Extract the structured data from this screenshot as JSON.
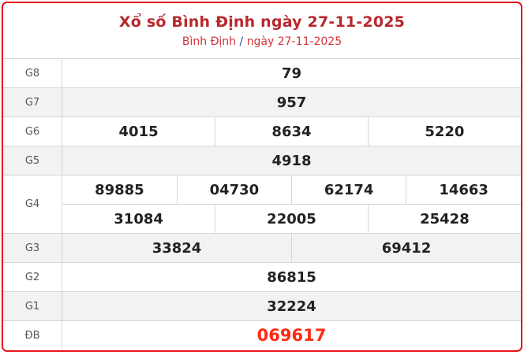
{
  "header": {
    "title": "Xổ số Bình Định ngày 27-11-2025",
    "crumb_province": "Bình Định",
    "crumb_sep": "/",
    "crumb_date": "ngày 27-11-2025"
  },
  "colors": {
    "border": "#e8141c",
    "title": "#b8282d",
    "special": "#ff2a12",
    "alt_row": "#f2f2f2"
  },
  "prizes": {
    "g8": {
      "label": "G8",
      "numbers": [
        "79"
      ]
    },
    "g7": {
      "label": "G7",
      "numbers": [
        "957"
      ]
    },
    "g6": {
      "label": "G6",
      "numbers": [
        "4015",
        "8634",
        "5220"
      ]
    },
    "g5": {
      "label": "G5",
      "numbers": [
        "4918"
      ]
    },
    "g4": {
      "label": "G4",
      "numbers": [
        "89885",
        "04730",
        "62174",
        "14663",
        "31084",
        "22005",
        "25428"
      ]
    },
    "g3": {
      "label": "G3",
      "numbers": [
        "33824",
        "69412"
      ]
    },
    "g2": {
      "label": "G2",
      "numbers": [
        "86815"
      ]
    },
    "g1": {
      "label": "G1",
      "numbers": [
        "32224"
      ]
    },
    "db": {
      "label": "ĐB",
      "numbers": [
        "069617"
      ]
    }
  }
}
